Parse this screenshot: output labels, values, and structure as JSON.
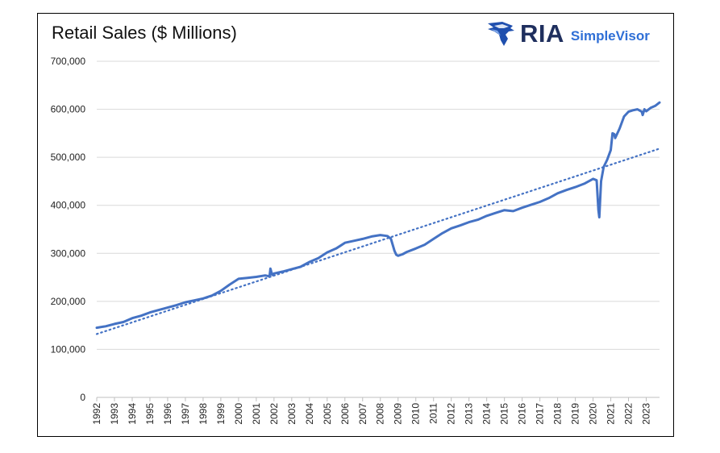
{
  "chart_data": {
    "type": "line",
    "title": "Retail Sales ($ Millions)",
    "xlabel": "",
    "ylabel": "",
    "ylim": [
      0,
      700000
    ],
    "yticks": [
      0,
      100000,
      200000,
      300000,
      400000,
      500000,
      600000,
      700000
    ],
    "ytick_labels": [
      "0",
      "100,000",
      "200,000",
      "300,000",
      "400,000",
      "500,000",
      "600,000",
      "700,000"
    ],
    "xlim": [
      1992.0,
      2023.75
    ],
    "xtick_labels": [
      "1992",
      "1993",
      "1994",
      "1995",
      "1996",
      "1997",
      "1998",
      "1999",
      "2000",
      "2001",
      "2002",
      "2003",
      "2004",
      "2005",
      "2006",
      "2007",
      "2008",
      "2009",
      "2010",
      "2011",
      "2012",
      "2013",
      "2014",
      "2015",
      "2016",
      "2017",
      "2018",
      "2019",
      "2020",
      "2021",
      "2022",
      "2023"
    ],
    "grid": true,
    "legend": "none",
    "colors": {
      "series": "#4472c4",
      "trend": "#4472c4",
      "gridline": "#d9d9d9"
    },
    "series": [
      {
        "style": "solid",
        "x": [
          1992.0,
          1992.5,
          1993.0,
          1993.5,
          1994.0,
          1994.5,
          1995.0,
          1995.5,
          1996.0,
          1996.5,
          1997.0,
          1997.5,
          1998.0,
          1998.5,
          1999.0,
          1999.5,
          2000.0,
          2000.5,
          2001.0,
          2001.5,
          2001.75,
          2001.8,
          2001.9,
          2002.0,
          2002.5,
          2003.0,
          2003.5,
          2004.0,
          2004.5,
          2005.0,
          2005.5,
          2005.75,
          2006.0,
          2006.5,
          2007.0,
          2007.5,
          2008.0,
          2008.4,
          2008.6,
          2008.8,
          2008.9,
          2009.0,
          2009.25,
          2009.5,
          2010.0,
          2010.5,
          2011.0,
          2011.5,
          2012.0,
          2012.5,
          2013.0,
          2013.5,
          2014.0,
          2014.5,
          2015.0,
          2015.5,
          2016.0,
          2016.5,
          2017.0,
          2017.5,
          2018.0,
          2018.5,
          2019.0,
          2019.5,
          2020.0,
          2020.2,
          2020.3,
          2020.35,
          2020.45,
          2020.6,
          2020.8,
          2021.0,
          2021.1,
          2021.2,
          2021.25,
          2021.5,
          2021.75,
          2022.0,
          2022.25,
          2022.5,
          2022.75,
          2022.8,
          2022.9,
          2023.0,
          2023.25,
          2023.5,
          2023.75
        ],
        "values": [
          145000,
          148000,
          153000,
          157000,
          165000,
          170000,
          177000,
          182000,
          187000,
          192000,
          198000,
          202000,
          206000,
          212000,
          222000,
          235000,
          247000,
          249000,
          251000,
          254000,
          252000,
          268000,
          255000,
          258000,
          262000,
          267000,
          272000,
          282000,
          290000,
          302000,
          310000,
          316000,
          322000,
          326000,
          330000,
          335000,
          338000,
          336000,
          330000,
          305000,
          297000,
          295000,
          298000,
          303000,
          310000,
          318000,
          330000,
          342000,
          352000,
          358000,
          365000,
          370000,
          378000,
          384000,
          390000,
          388000,
          395000,
          401000,
          407000,
          415000,
          425000,
          432000,
          438000,
          445000,
          455000,
          452000,
          390000,
          375000,
          450000,
          480000,
          495000,
          515000,
          550000,
          548000,
          540000,
          560000,
          585000,
          595000,
          598000,
          600000,
          595000,
          588000,
          600000,
          596000,
          603000,
          607000,
          614000
        ]
      },
      {
        "style": "dotted",
        "x": [
          1992.0,
          2023.75
        ],
        "values": [
          132000,
          518000
        ]
      }
    ]
  }
}
